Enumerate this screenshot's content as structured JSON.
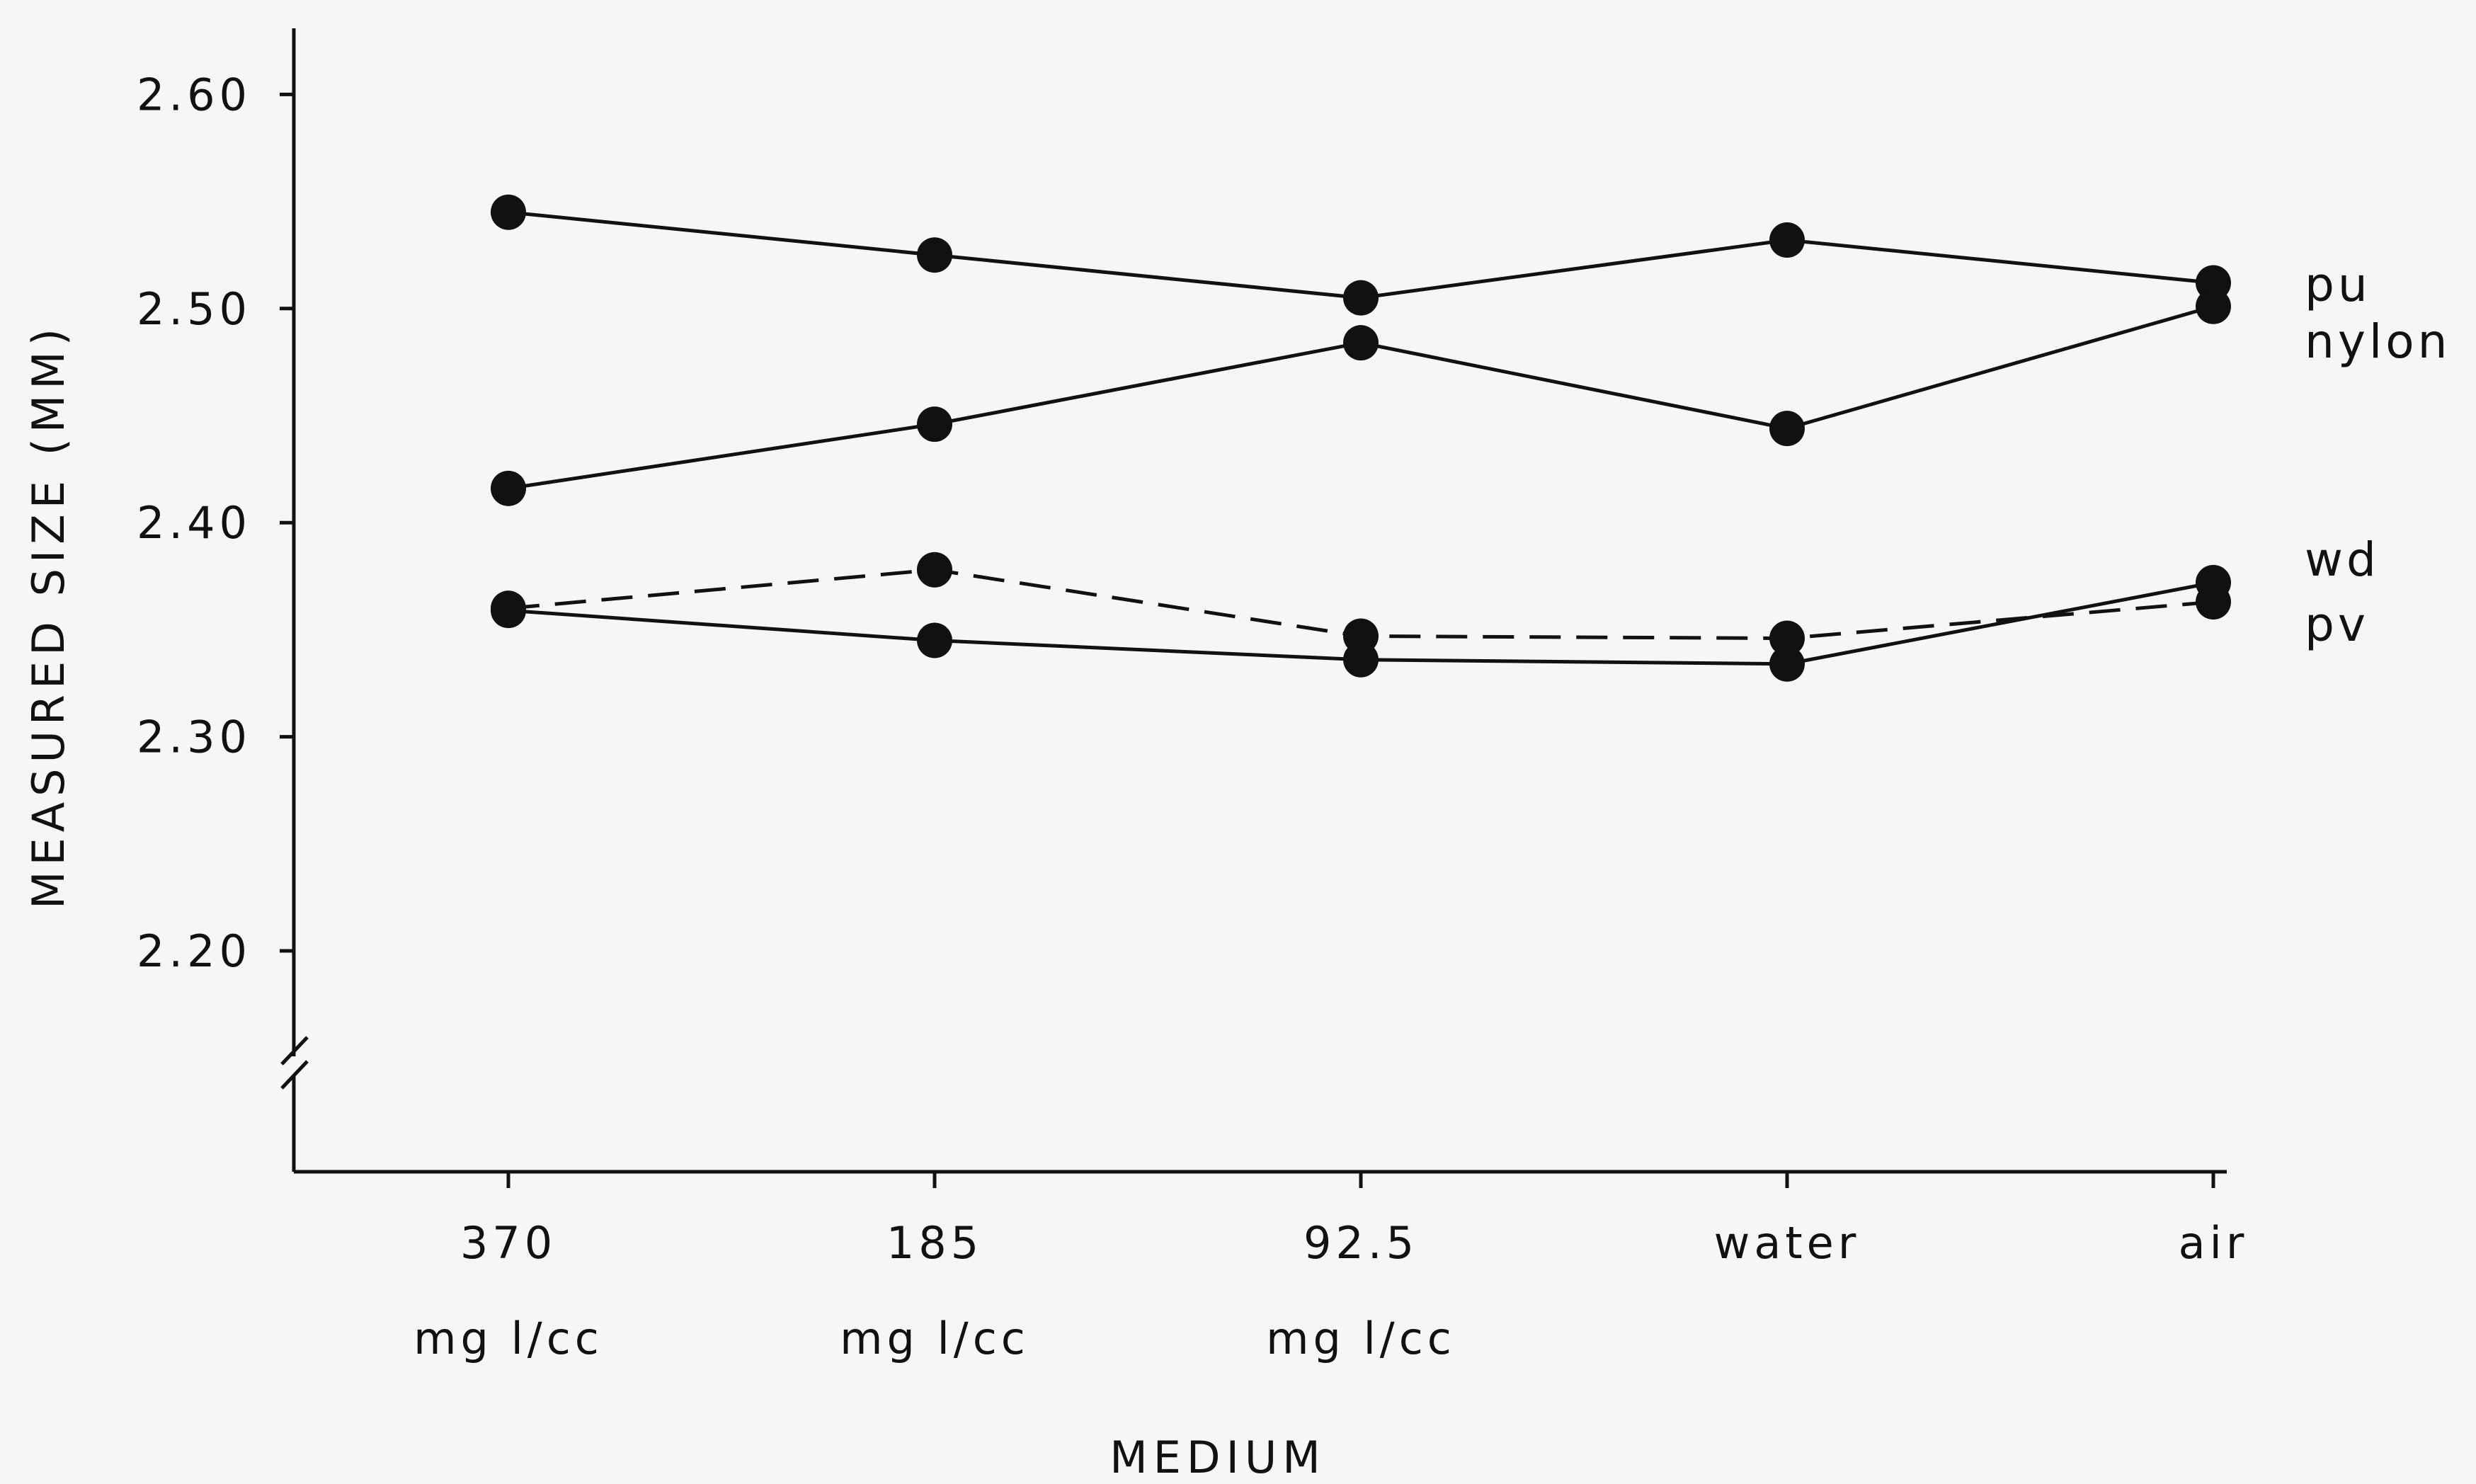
{
  "chart_data": {
    "type": "line",
    "xlabel": "MEDIUM",
    "ylabel": "MEASURED SIZE (MM)",
    "categories": [
      {
        "line1": "370",
        "line2": "mg l/cc"
      },
      {
        "line1": "185",
        "line2": "mg l/cc"
      },
      {
        "line1": "92.5",
        "line2": "mg l/cc"
      },
      {
        "line1": "water",
        "line2": ""
      },
      {
        "line1": "air",
        "line2": ""
      }
    ],
    "yticks": [
      "2.20",
      "2.30",
      "2.40",
      "2.50",
      "2.60"
    ],
    "ytick_values": [
      2.2,
      2.3,
      2.4,
      2.5,
      2.6
    ],
    "ylim": [
      2.15,
      2.63
    ],
    "axis_break": true,
    "grid": false,
    "series": [
      {
        "name": "pu",
        "style": "solid",
        "values": [
          2.545,
          2.525,
          2.505,
          2.532,
          2.512
        ]
      },
      {
        "name": "nylon",
        "style": "solid",
        "values": [
          2.416,
          2.446,
          2.484,
          2.444,
          2.501
        ]
      },
      {
        "name": "wd",
        "style": "solid",
        "values": [
          2.359,
          2.345,
          2.336,
          2.334,
          2.372
        ]
      },
      {
        "name": "pv",
        "style": "dashed",
        "values": [
          2.36,
          2.378,
          2.347,
          2.346,
          2.363
        ]
      }
    ]
  }
}
